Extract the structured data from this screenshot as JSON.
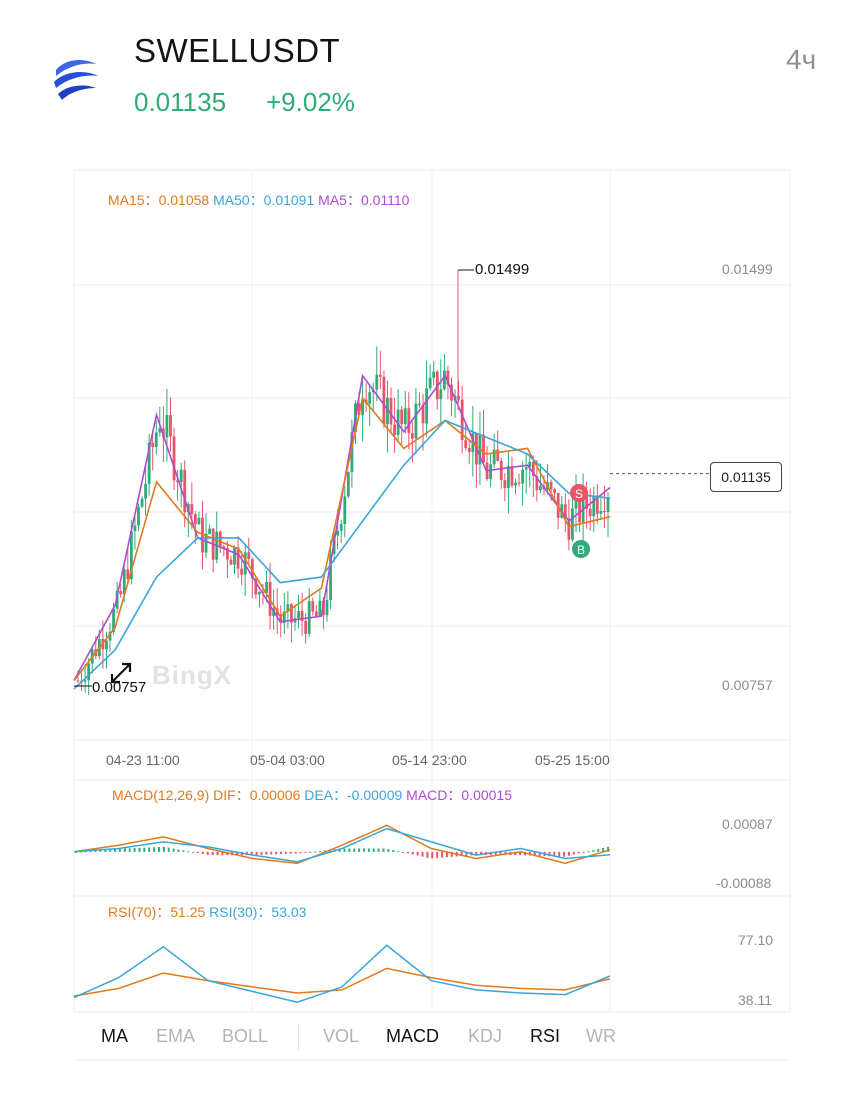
{
  "header": {
    "symbol": "SWELLUSDT",
    "price": "0.01135",
    "change": "+9.02%",
    "interval": "4ч",
    "accent_color": "#2eab76",
    "logo_icon": "swell-logo-icon"
  },
  "main_chart": {
    "legend": {
      "ma15": "MA15：0.01058",
      "ma50": "MA50：0.01091",
      "ma5": "MA5：0.01110"
    },
    "y_labels": [
      "0.01499",
      "0.00757"
    ],
    "high_marker": "0.01499",
    "low_marker": "0.00757",
    "current_price_tag": "0.01135",
    "x_labels": [
      "04-23 11:00",
      "05-04 03:00",
      "05-14 23:00",
      "05-25 15:00"
    ],
    "sell_badge": "S",
    "buy_badge": "B",
    "watermark": "BingX",
    "up_color": "#2eab76",
    "down_color": "#e8556b"
  },
  "macd_panel": {
    "legend": {
      "title": "MACD(12,26,9)",
      "dif": "DIF：0.00006",
      "dea": "DEA：-0.00009",
      "macd": "MACD：0.00015"
    },
    "y_labels": [
      "0.00087",
      "-0.00088"
    ]
  },
  "rsi_panel": {
    "legend": {
      "rsi70": "RSI(70)：51.25",
      "rsi30": "RSI(30)：53.03"
    },
    "y_labels": [
      "77.10",
      "38.11"
    ]
  },
  "tabs": [
    {
      "label": "MA",
      "active": true
    },
    {
      "label": "EMA",
      "active": false
    },
    {
      "label": "BOLL",
      "active": false
    },
    {
      "label": "VOL",
      "active": false
    },
    {
      "label": "MACD",
      "active": true
    },
    {
      "label": "KDJ",
      "active": false
    },
    {
      "label": "RSI",
      "active": true
    },
    {
      "label": "WR",
      "active": false
    }
  ],
  "chart_data": [
    {
      "type": "line",
      "title": "SWELLUSDT 4ч",
      "x_ticks": [
        "04-23 11:00",
        "05-04 03:00",
        "05-14 23:00",
        "05-25 15:00"
      ],
      "ylim": [
        0.00757,
        0.01499
      ],
      "series": [
        {
          "name": "MA5",
          "x": [
            "04-20",
            "04-23 11:00",
            "04-26",
            "04-29",
            "05-04 03:00",
            "05-07",
            "05-10",
            "05-12",
            "05-14 23:00",
            "05-17",
            "05-20",
            "05-23",
            "05-25 15:00",
            "05-26"
          ],
          "values": [
            0.00765,
            0.009,
            0.0124,
            0.0102,
            0.0099,
            0.0087,
            0.0088,
            0.0131,
            0.0121,
            0.0131,
            0.0114,
            0.0115,
            0.0105,
            0.0111
          ]
        },
        {
          "name": "MA15",
          "x": [
            "04-20",
            "04-23 11:00",
            "04-26",
            "04-29",
            "05-04 03:00",
            "05-07",
            "05-10",
            "05-12",
            "05-14 23:00",
            "05-17",
            "05-20",
            "05-23",
            "05-25 15:00",
            "05-26"
          ],
          "values": [
            0.00765,
            0.0086,
            0.0112,
            0.0103,
            0.01,
            0.0088,
            0.0093,
            0.0127,
            0.0118,
            0.0123,
            0.0117,
            0.0118,
            0.0104,
            0.01058
          ]
        },
        {
          "name": "MA50",
          "x": [
            "04-20",
            "04-23 11:00",
            "04-26",
            "04-29",
            "05-04 03:00",
            "05-07",
            "05-10",
            "05-12",
            "05-14 23:00",
            "05-17",
            "05-20",
            "05-23",
            "05-25 15:00",
            "05-26"
          ],
          "values": [
            0.0075,
            0.0082,
            0.0095,
            0.0102,
            0.0102,
            0.0094,
            0.0095,
            0.0105,
            0.0115,
            0.0123,
            0.012,
            0.0117,
            0.011,
            0.01091
          ]
        }
      ],
      "high": 0.01499,
      "low": 0.00757,
      "last": 0.01135
    },
    {
      "type": "line",
      "title": "MACD(12,26,9)",
      "ylim": [
        -0.00088,
        0.00087
      ],
      "series": [
        {
          "name": "DIF",
          "values": [
            0.0,
            0.0002,
            0.00045,
            0.0001,
            -0.0002,
            -0.00035,
            0.0002,
            0.0008,
            0.0001,
            -0.0002,
            0.0,
            -0.00035,
            6e-05
          ]
        },
        {
          "name": "DEA",
          "values": [
            0.0,
            0.0001,
            0.0003,
            0.00015,
            -0.0001,
            -0.0003,
            0.0001,
            0.0007,
            0.0003,
            -0.0001,
            0.0001,
            -0.0002,
            -9e-05
          ]
        },
        {
          "name": "MACD",
          "values": [
            0.0,
            0.0001,
            0.00015,
            -0.0001,
            -0.0001,
            -5e-05,
            0.0001,
            0.0001,
            -0.0002,
            -0.0001,
            -0.0001,
            -0.00015,
            0.00015
          ]
        }
      ]
    },
    {
      "type": "line",
      "title": "RSI",
      "ylim": [
        38.11,
        77.1
      ],
      "series": [
        {
          "name": "RSI(70)",
          "values": [
            40,
            45,
            55,
            50,
            46,
            42,
            44,
            58,
            52,
            47,
            45,
            44,
            51.25
          ]
        },
        {
          "name": "RSI(30)",
          "values": [
            39,
            52,
            72,
            50,
            43,
            36,
            46,
            73,
            50,
            44,
            42,
            41,
            53.03
          ]
        }
      ]
    }
  ]
}
